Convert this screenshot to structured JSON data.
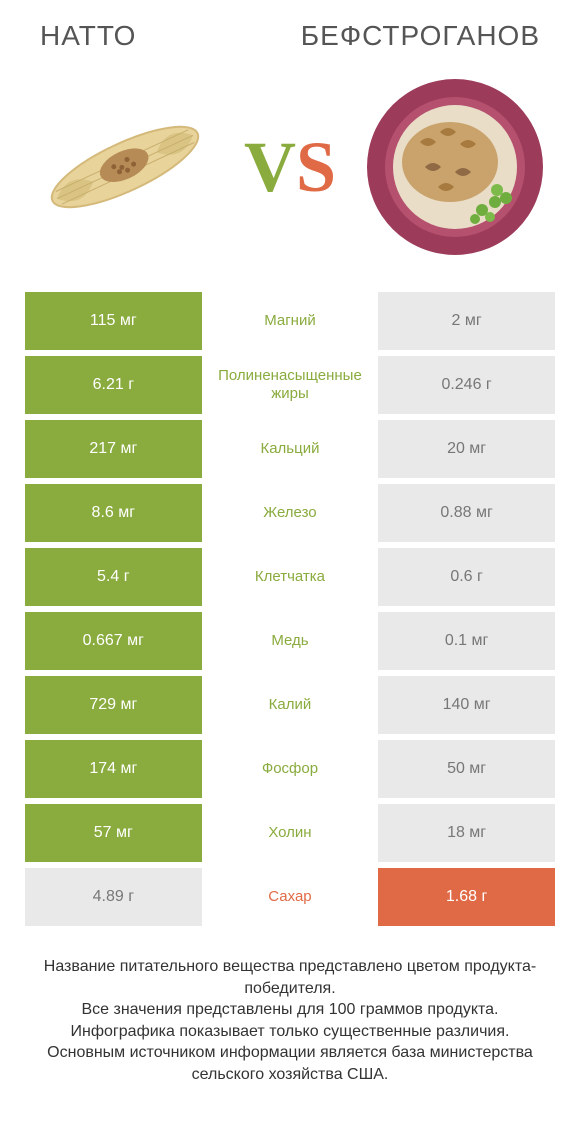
{
  "colors": {
    "left_winner_bg": "#8aab3e",
    "right_winner_bg": "#e06a46",
    "neutral_bg": "#e9e9e9",
    "left_label": "#8aab3e",
    "right_label": "#e06a46",
    "neutral_text": "#777777",
    "title_text": "#555555"
  },
  "header": {
    "left_title": "НАТТО",
    "right_title": "БЕФСТРОГАНОВ"
  },
  "vs": {
    "v": "V",
    "s": "S"
  },
  "rows": [
    {
      "left": "115 мг",
      "label": "Магний",
      "right": "2 мг",
      "winner": "left"
    },
    {
      "left": "6.21 г",
      "label": "Полиненасыщенные жиры",
      "right": "0.246 г",
      "winner": "left"
    },
    {
      "left": "217 мг",
      "label": "Кальций",
      "right": "20 мг",
      "winner": "left"
    },
    {
      "left": "8.6 мг",
      "label": "Железо",
      "right": "0.88 мг",
      "winner": "left"
    },
    {
      "left": "5.4 г",
      "label": "Клетчатка",
      "right": "0.6 г",
      "winner": "left"
    },
    {
      "left": "0.667 мг",
      "label": "Медь",
      "right": "0.1 мг",
      "winner": "left"
    },
    {
      "left": "729 мг",
      "label": "Калий",
      "right": "140 мг",
      "winner": "left"
    },
    {
      "left": "174 мг",
      "label": "Фосфор",
      "right": "50 мг",
      "winner": "left"
    },
    {
      "left": "57 мг",
      "label": "Холин",
      "right": "18 мг",
      "winner": "left"
    },
    {
      "left": "4.89 г",
      "label": "Сахар",
      "right": "1.68 г",
      "winner": "right"
    }
  ],
  "footer": {
    "l1": "Название питательного вещества представлено цветом продукта-победителя.",
    "l2": "Все значения представлены для 100 граммов продукта.",
    "l3": "Инфографика показывает только существенные различия.",
    "l4": "Основным источником информации является база министерства сельского хозяйства США."
  }
}
